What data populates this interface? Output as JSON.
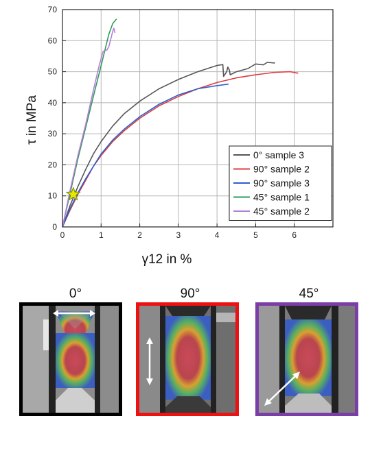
{
  "chart_data": {
    "type": "line",
    "xlabel": "γ12 in %",
    "ylabel": "τ in MPa",
    "xlim": [
      0,
      7
    ],
    "ylim": [
      0,
      70
    ],
    "xticks": [
      0,
      1,
      2,
      3,
      4,
      5,
      6
    ],
    "yticks": [
      0,
      10,
      20,
      30,
      40,
      50,
      60,
      70
    ],
    "grid": true,
    "legend_position": "bottom-right",
    "series": [
      {
        "name": "0° sample 3",
        "color": "#555555",
        "x": [
          0,
          0.2,
          0.4,
          0.6,
          0.8,
          1.0,
          1.3,
          1.6,
          2.0,
          2.5,
          3.0,
          3.5,
          4.0,
          4.15,
          4.17,
          4.25,
          4.28,
          4.32,
          4.34,
          4.5,
          4.8,
          5.0,
          5.2,
          5.3,
          5.5
        ],
        "y": [
          0,
          7,
          13,
          18.5,
          23.5,
          27.5,
          32.5,
          36.5,
          40.5,
          44.5,
          47.5,
          50,
          52,
          52.3,
          48.5,
          50,
          51.5,
          50.5,
          49,
          50,
          51,
          52.5,
          52.2,
          53,
          52.8
        ]
      },
      {
        "name": "90° sample 2",
        "color": "#e03a3a",
        "x": [
          0,
          0.2,
          0.4,
          0.6,
          0.8,
          1.0,
          1.3,
          1.6,
          2.0,
          2.5,
          3.0,
          3.5,
          4.0,
          4.5,
          5.0,
          5.5,
          5.9,
          6.1
        ],
        "y": [
          0,
          5.5,
          10.5,
          15,
          19.5,
          23,
          27.5,
          31,
          35,
          39,
          42,
          44.5,
          46.5,
          48,
          49,
          49.8,
          50,
          49.5
        ]
      },
      {
        "name": "90° sample 3",
        "color": "#2b5fcf",
        "x": [
          0,
          0.2,
          0.4,
          0.6,
          0.8,
          1.0,
          1.3,
          1.6,
          2.0,
          2.5,
          3.0,
          3.5,
          4.0,
          4.3
        ],
        "y": [
          0,
          6,
          11,
          15.5,
          19.5,
          23.5,
          28,
          31.5,
          35.5,
          39.5,
          42.5,
          44.5,
          45.5,
          46
        ]
      },
      {
        "name": "45° sample 1",
        "color": "#2e9a5e",
        "x": [
          0,
          0.2,
          0.4,
          0.6,
          0.8,
          1.0,
          1.1,
          1.2,
          1.3,
          1.4
        ],
        "y": [
          0,
          11,
          22,
          32,
          42,
          52,
          57,
          62,
          65.5,
          67
        ]
      },
      {
        "name": "45° sample 2",
        "color": "#b57fd6",
        "x": [
          0,
          0.2,
          0.4,
          0.6,
          0.8,
          0.95,
          1.05,
          1.15,
          1.2,
          1.25,
          1.3,
          1.33,
          1.36
        ],
        "y": [
          0,
          12,
          23,
          33,
          44,
          52,
          56.5,
          57,
          58,
          60.5,
          63,
          64,
          62.5
        ]
      }
    ],
    "annotations": [
      {
        "type": "star-marker",
        "x": 0.28,
        "y": 10.5,
        "color": "#e8e800"
      }
    ]
  },
  "panels": [
    {
      "title": "0°",
      "border_color": "#000000",
      "arrow": "horizontal"
    },
    {
      "title": "90°",
      "border_color": "#ee1111",
      "arrow": "vertical"
    },
    {
      "title": "45°",
      "border_color": "#7b3ea6",
      "arrow": "diagonal"
    }
  ]
}
